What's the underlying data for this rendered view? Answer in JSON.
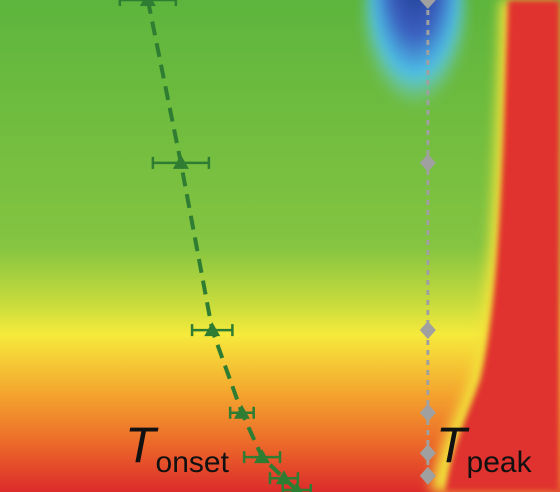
{
  "chart_data": {
    "type": "scatter",
    "xlim": [
      0,
      100
    ],
    "ylim": [
      0,
      100
    ],
    "series": [
      {
        "color": "#2e7d32",
        "marker": "triangle",
        "line": "dashed",
        "x": [
          26.4,
          32.3,
          37.9,
          43.2,
          46.8,
          50.7,
          53.0
        ],
        "values": [
          100,
          66.9,
          32.9,
          16.1,
          7.1,
          2.8,
          0.4
        ],
        "errors": [
          5.0,
          5.0,
          3.6,
          2.1,
          3.2,
          2.5,
          2.5
        ]
      },
      {
        "color": "#a0a0a0",
        "marker": "diamond",
        "line": "dotted",
        "x": [
          76.4,
          76.4,
          76.4,
          76.4,
          76.4,
          76.4
        ],
        "values": [
          100,
          66.9,
          32.9,
          16.1,
          7.9,
          3.3
        ]
      }
    ],
    "annotations": [
      {
        "main": "T",
        "sub": "onset"
      },
      {
        "main": "T",
        "sub": "peak"
      }
    ]
  }
}
